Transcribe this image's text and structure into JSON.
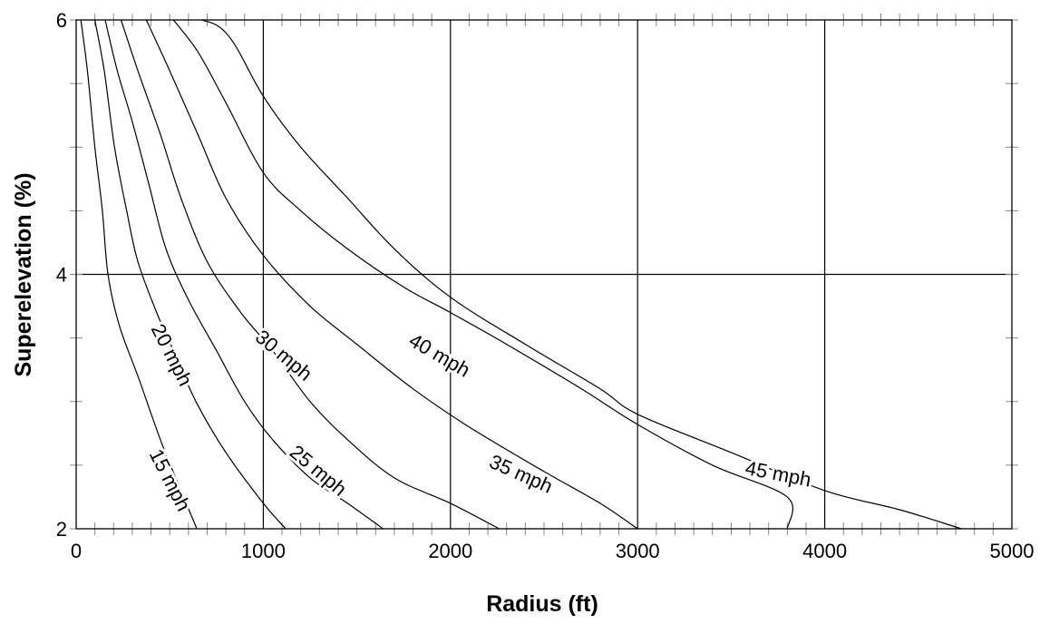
{
  "chart_data": {
    "type": "line",
    "xlabel": "Radius (ft)",
    "ylabel": "Superelevation (%)",
    "xlim": [
      0,
      5000
    ],
    "ylim": [
      2,
      6
    ],
    "xticks": [
      0,
      1000,
      2000,
      3000,
      4000,
      5000
    ],
    "yticks": [
      2,
      4,
      6
    ],
    "grid": true,
    "series": [
      {
        "name": "15 mph",
        "points": [
          [
            25,
            6
          ],
          [
            60,
            5.6
          ],
          [
            100,
            5.0
          ],
          [
            140,
            4.5
          ],
          [
            170,
            4.0
          ],
          [
            230,
            3.6
          ],
          [
            330,
            3.2
          ],
          [
            450,
            2.7
          ],
          [
            560,
            2.3
          ],
          [
            645,
            2.0
          ]
        ]
      },
      {
        "name": "20 mph",
        "points": [
          [
            100,
            6
          ],
          [
            150,
            5.6
          ],
          [
            205,
            5.0
          ],
          [
            270,
            4.5
          ],
          [
            330,
            4.1
          ],
          [
            430,
            3.7
          ],
          [
            520,
            3.4
          ],
          [
            640,
            3.0
          ],
          [
            800,
            2.6
          ],
          [
            1000,
            2.2
          ],
          [
            1120,
            2.0
          ]
        ]
      },
      {
        "name": "25 mph",
        "points": [
          [
            155,
            6
          ],
          [
            220,
            5.6
          ],
          [
            300,
            5.2
          ],
          [
            390,
            4.7
          ],
          [
            480,
            4.2
          ],
          [
            600,
            3.8
          ],
          [
            750,
            3.4
          ],
          [
            900,
            3.0
          ],
          [
            1050,
            2.7
          ],
          [
            1250,
            2.4
          ],
          [
            1450,
            2.2
          ],
          [
            1640,
            2.0
          ]
        ]
      },
      {
        "name": "30 mph",
        "points": [
          [
            240,
            6
          ],
          [
            330,
            5.6
          ],
          [
            450,
            5.1
          ],
          [
            560,
            4.6
          ],
          [
            700,
            4.1
          ],
          [
            880,
            3.7
          ],
          [
            1050,
            3.4
          ],
          [
            1250,
            3.0
          ],
          [
            1450,
            2.7
          ],
          [
            1700,
            2.4
          ],
          [
            2000,
            2.2
          ],
          [
            2260,
            2.0
          ]
        ]
      },
      {
        "name": "35 mph",
        "points": [
          [
            375,
            6
          ],
          [
            500,
            5.6
          ],
          [
            650,
            5.1
          ],
          [
            800,
            4.6
          ],
          [
            1000,
            4.15
          ],
          [
            1250,
            3.75
          ],
          [
            1500,
            3.45
          ],
          [
            1800,
            3.1
          ],
          [
            2100,
            2.8
          ],
          [
            2500,
            2.45
          ],
          [
            2800,
            2.2
          ],
          [
            3000,
            2.0
          ]
        ]
      },
      {
        "name": "40 mph",
        "points": [
          [
            520,
            6
          ],
          [
            650,
            5.75
          ],
          [
            800,
            5.35
          ],
          [
            1000,
            4.8
          ],
          [
            1200,
            4.5
          ],
          [
            1450,
            4.2
          ],
          [
            1750,
            3.9
          ],
          [
            2000,
            3.7
          ],
          [
            2300,
            3.45
          ],
          [
            2700,
            3.1
          ],
          [
            3000,
            2.82
          ],
          [
            3400,
            2.5
          ],
          [
            3800,
            2.25
          ],
          [
            3800,
            2.0
          ]
        ]
      },
      {
        "name": "45 mph",
        "points": [
          [
            670,
            6
          ],
          [
            760,
            5.95
          ],
          [
            850,
            5.8
          ],
          [
            1000,
            5.4
          ],
          [
            1200,
            5.0
          ],
          [
            1450,
            4.6
          ],
          [
            1700,
            4.2
          ],
          [
            2000,
            3.82
          ],
          [
            2400,
            3.45
          ],
          [
            2800,
            3.1
          ],
          [
            3000,
            2.9
          ],
          [
            3500,
            2.6
          ],
          [
            4000,
            2.3
          ],
          [
            4400,
            2.15
          ],
          [
            4730,
            2.0
          ]
        ]
      }
    ],
    "curve_labels": [
      "15 mph",
      "20 mph",
      "25 mph",
      "30 mph",
      "35 mph",
      "40 mph",
      "45 mph"
    ]
  }
}
